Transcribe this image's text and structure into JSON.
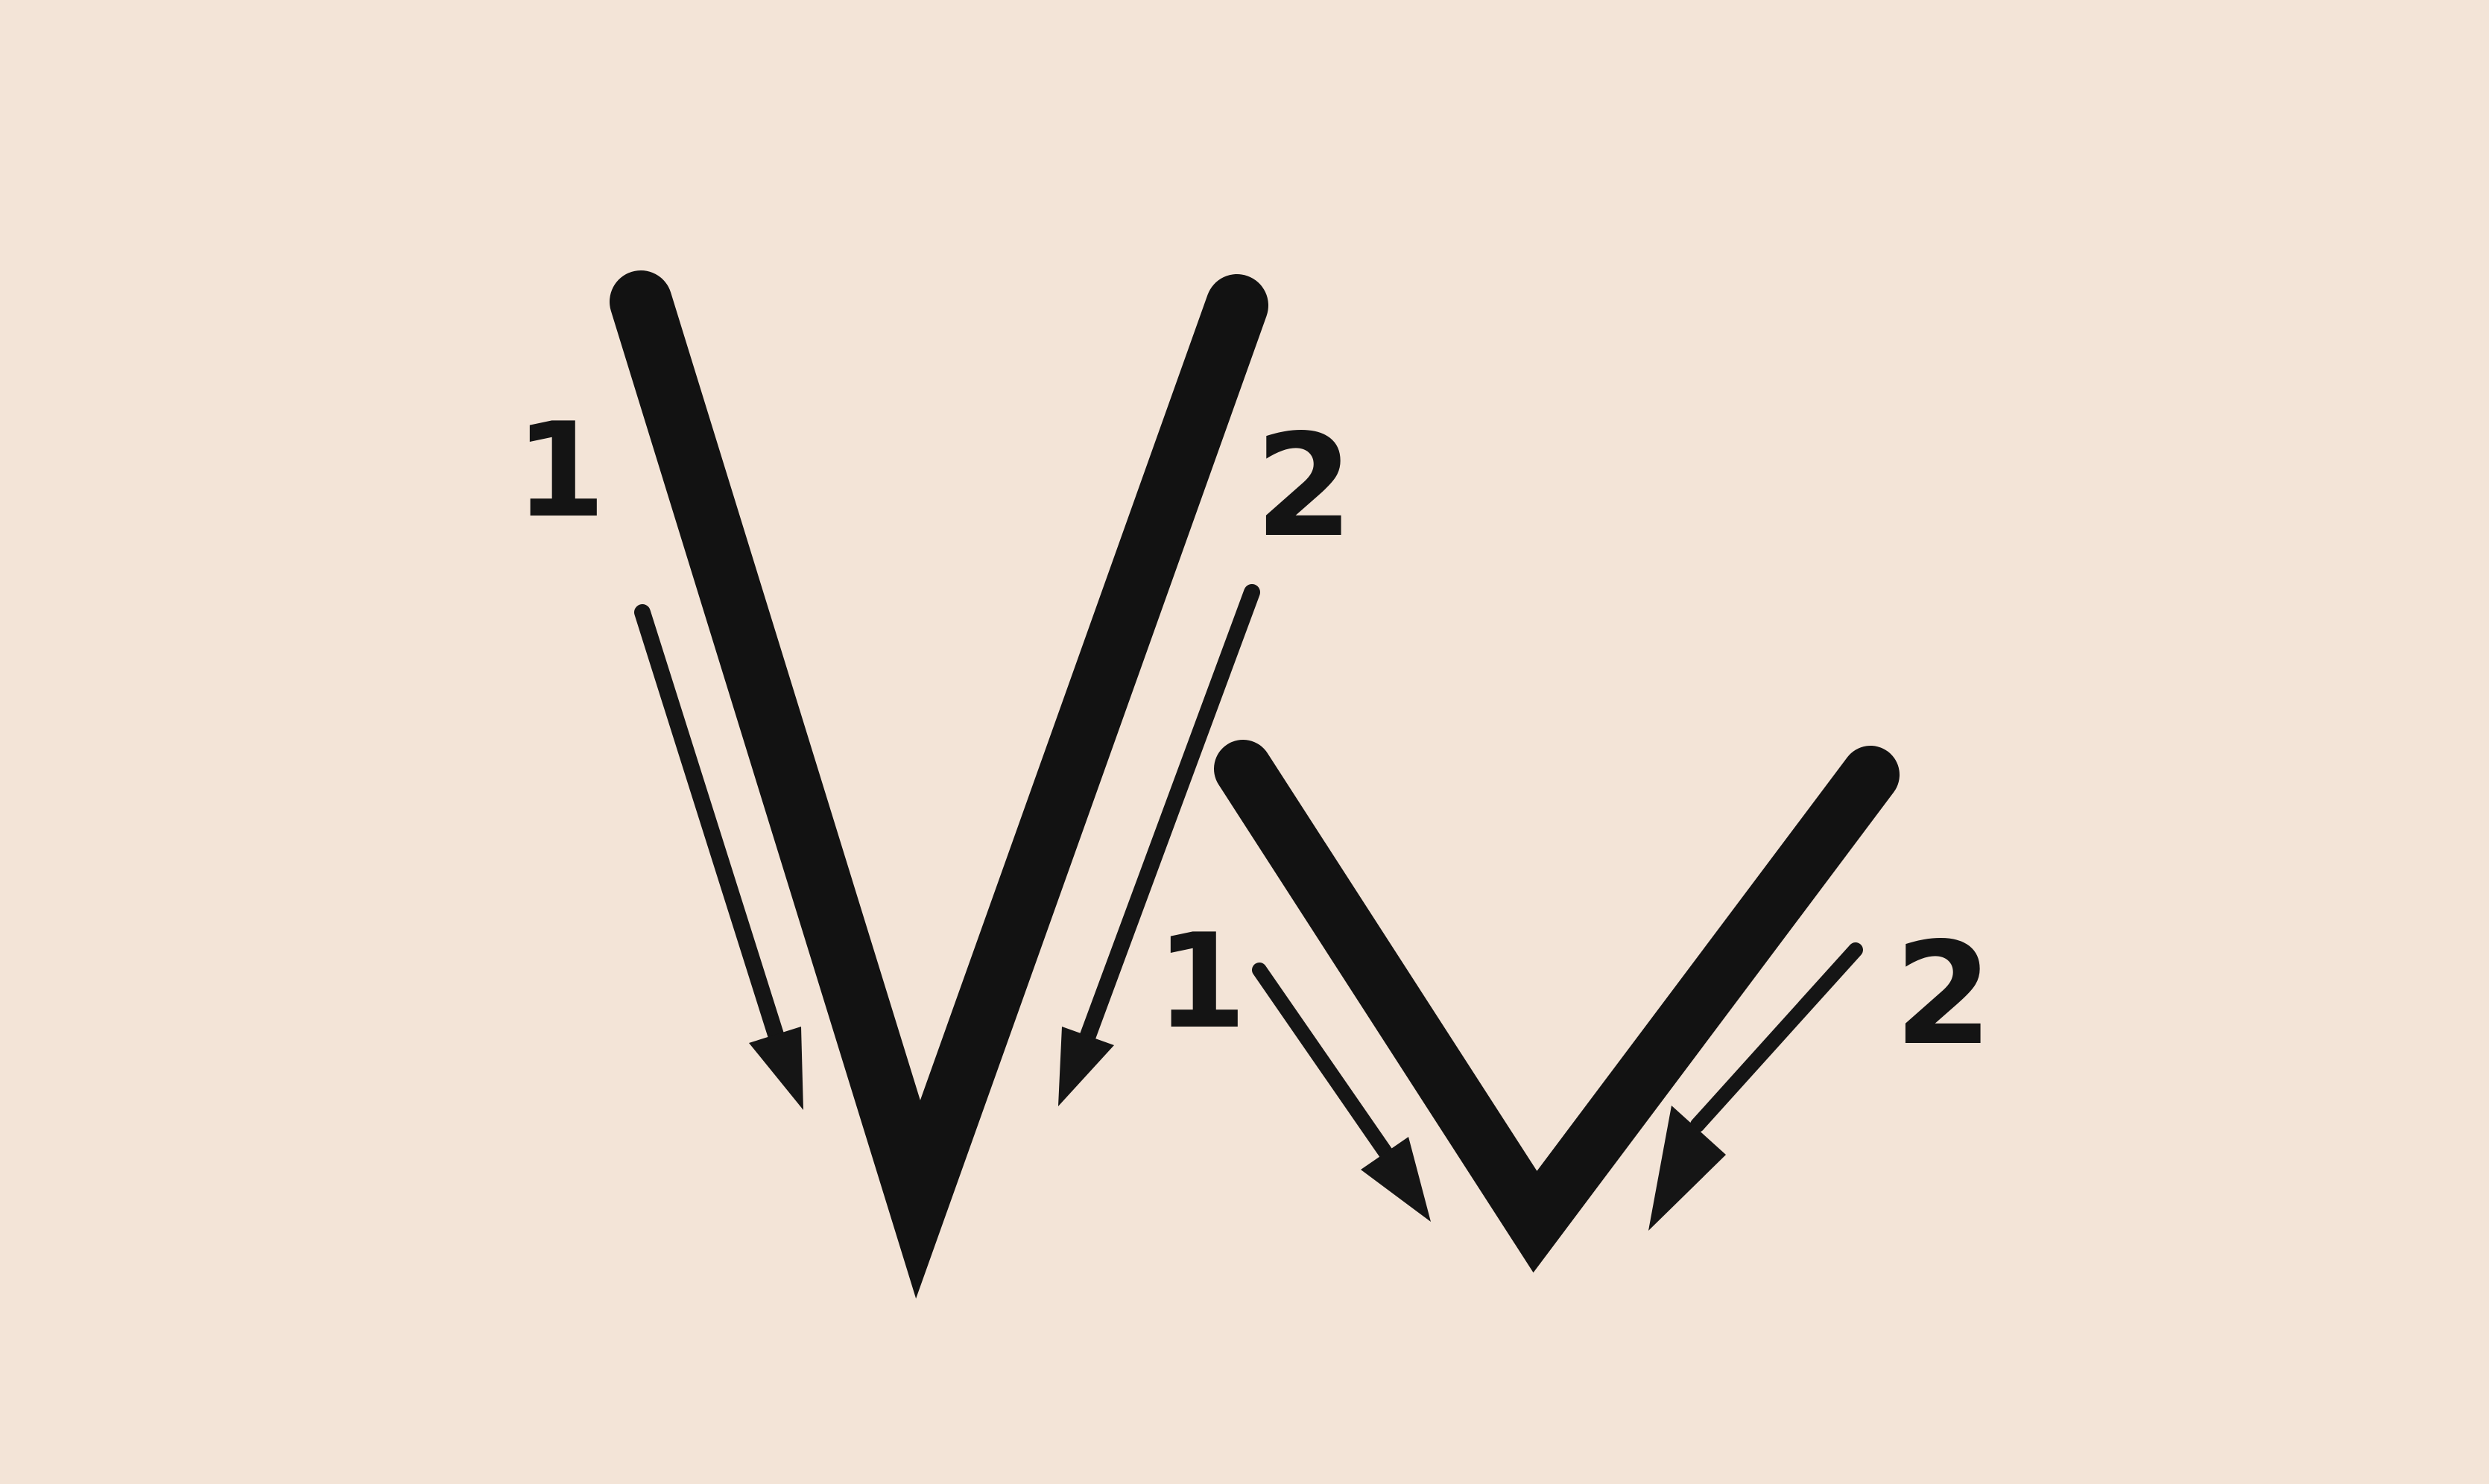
{
  "diagram": {
    "background": "#f3e4d7",
    "ink": "#141414",
    "letters": [
      {
        "id": "V",
        "steps": [
          {
            "number": "1"
          },
          {
            "number": "2"
          }
        ]
      },
      {
        "id": "small-v",
        "steps": [
          {
            "number": "1"
          },
          {
            "number": "2"
          }
        ]
      }
    ]
  }
}
